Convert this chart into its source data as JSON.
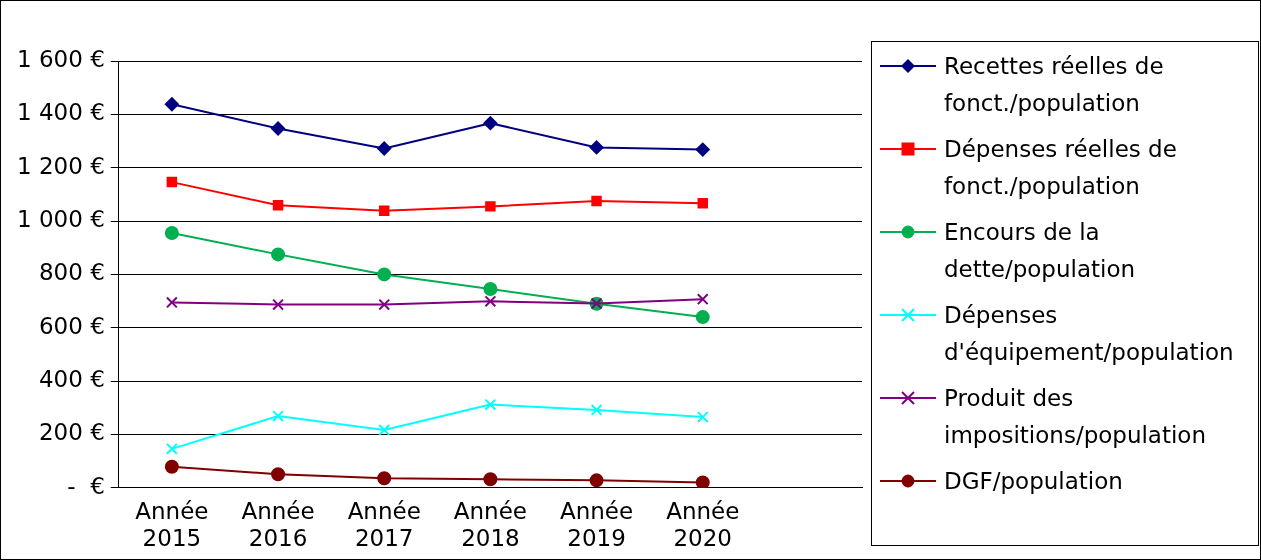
{
  "chart_data": {
    "type": "line",
    "categories": [
      "Année 2015",
      "Année 2016",
      "Année 2017",
      "Année 2018",
      "Année 2019",
      "Année 2020",
      null
    ],
    "ylim": [
      0,
      1600
    ],
    "yticks": [
      {
        "value": 0,
        "label": "-  €"
      },
      {
        "value": 200,
        "label": "200 €"
      },
      {
        "value": 400,
        "label": "400 €"
      },
      {
        "value": 600,
        "label": "600 €"
      },
      {
        "value": 800,
        "label": "800 €"
      },
      {
        "value": 1000,
        "label": "1 000 €"
      },
      {
        "value": 1200,
        "label": "1 200 €"
      },
      {
        "value": 1400,
        "label": "1 400 €"
      },
      {
        "value": 1600,
        "label": "1 600 €"
      }
    ],
    "grid": "y",
    "legend": "right",
    "line_style": "solid",
    "series": [
      {
        "name": "Recettes réelles de fonct./population",
        "color": "#000080",
        "marker": "diamond",
        "values": [
          1438,
          1347,
          1272,
          1367,
          1276,
          1268,
          null
        ]
      },
      {
        "name": "Dépenses réelles de fonct./population",
        "color": "#ff0000",
        "marker": "square",
        "values": [
          1146,
          1059,
          1039,
          1055,
          1075,
          1067,
          null
        ]
      },
      {
        "name": "Encours de la dette/population",
        "color": "#00b050",
        "marker": "circle",
        "values": [
          955,
          875,
          800,
          745,
          690,
          640,
          null
        ]
      },
      {
        "name": "Dépenses d'équipement/population",
        "color": "#00ffff",
        "marker": "cross",
        "values": [
          146,
          269,
          217,
          312,
          292,
          265,
          null
        ]
      },
      {
        "name": "Produit des impositions/population",
        "color": "#800080",
        "marker": "cross",
        "values": [
          695,
          687,
          687,
          699,
          691,
          707,
          null
        ]
      },
      {
        "name": "DGF/population",
        "color": "#800000",
        "marker": "circle",
        "values": [
          79,
          51,
          36,
          32,
          28,
          20,
          null
        ]
      }
    ]
  }
}
